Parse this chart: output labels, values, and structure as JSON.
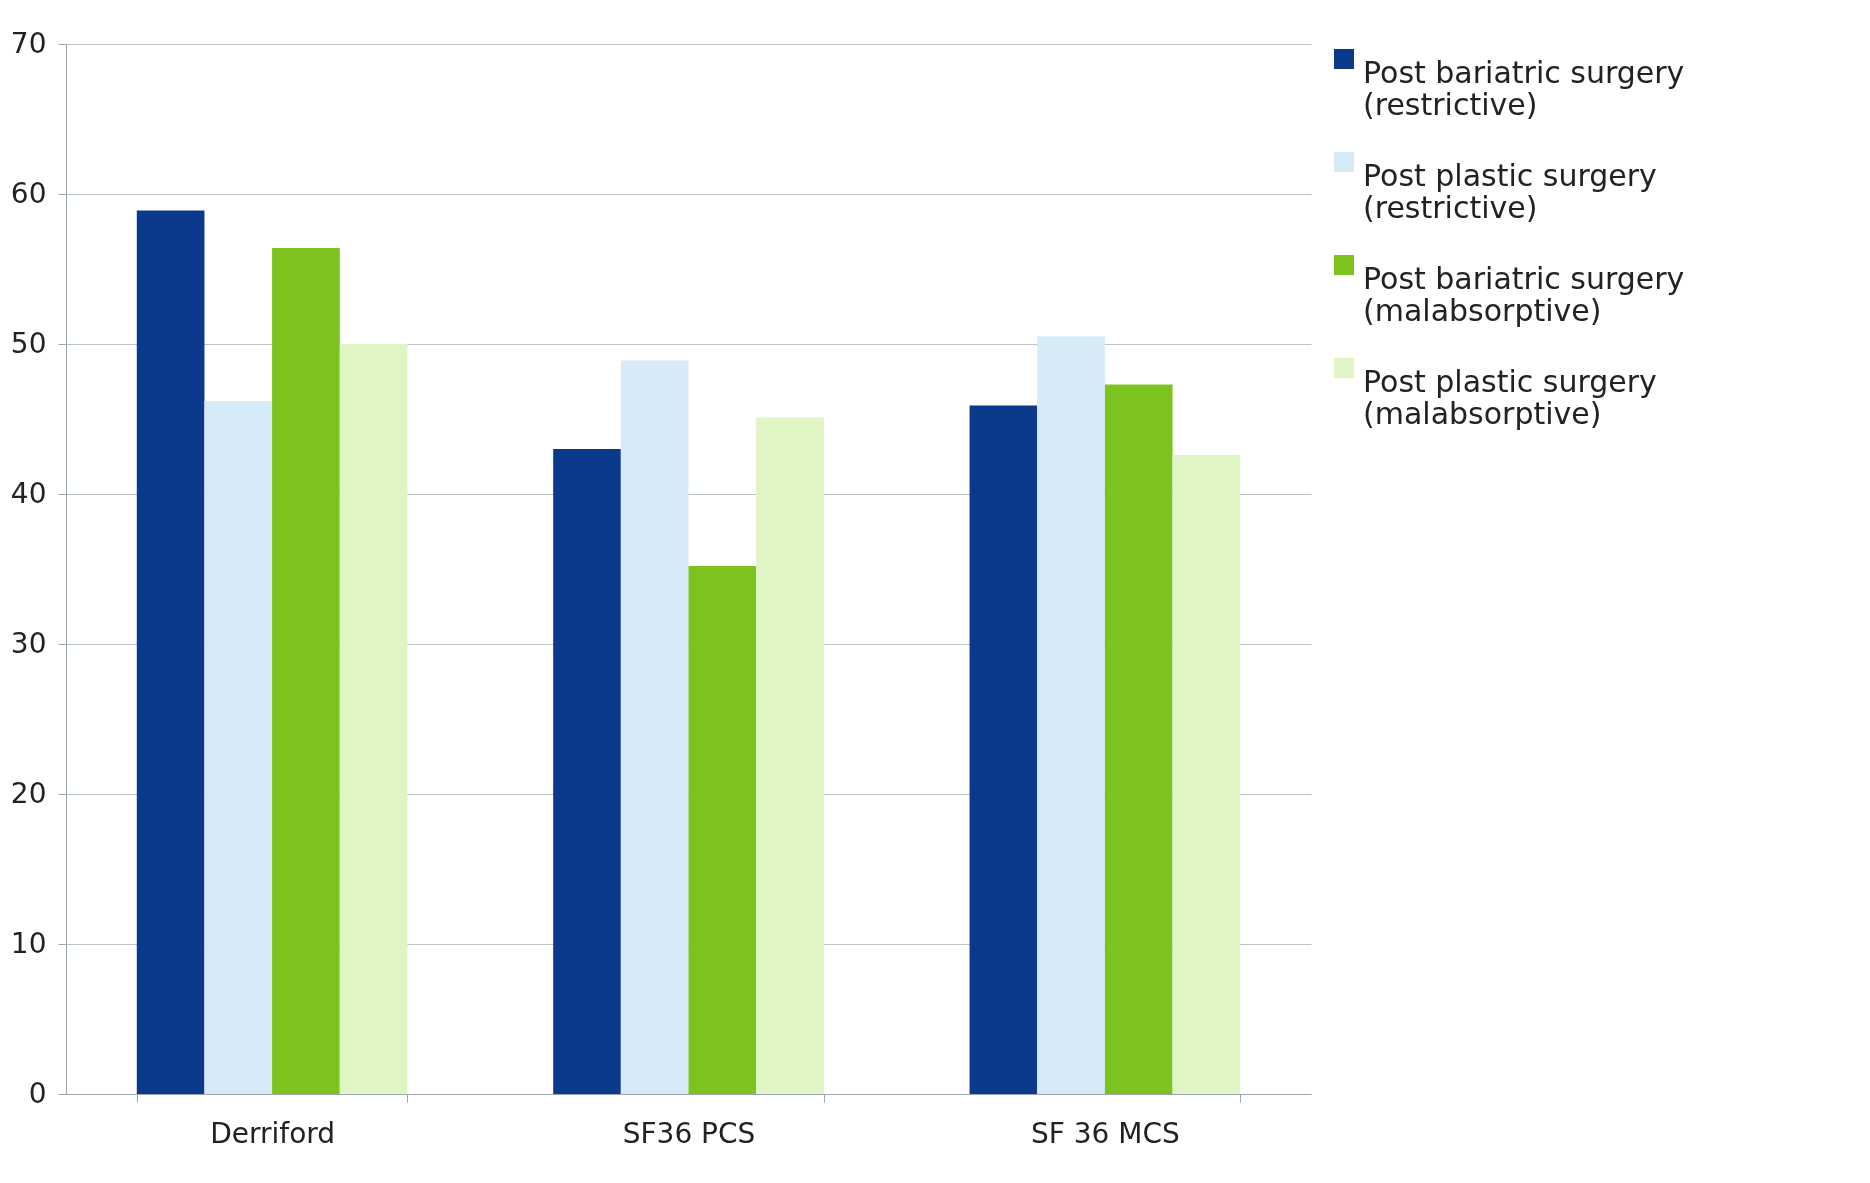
{
  "chart_data": {
    "type": "bar",
    "categories": [
      "Derriford",
      "SF36 PCS",
      "SF 36 MCS"
    ],
    "series": [
      {
        "name": "Post bariatric surgery (restrictive)",
        "color": "#0b3a8c",
        "values": [
          58.9,
          43.0,
          45.9
        ]
      },
      {
        "name": "Post plastic surgery (restrictive)",
        "color": "#d6eaf8",
        "values": [
          46.2,
          48.9,
          50.5
        ]
      },
      {
        "name": "Post bariatric surgery (malabsorptive)",
        "color": "#7dc31f",
        "values": [
          56.4,
          35.2,
          47.3
        ]
      },
      {
        "name": "Post plastic surgery (malabsorptive)",
        "color": "#e0f5c4",
        "values": [
          50.0,
          45.1,
          42.6
        ]
      }
    ],
    "ylim": [
      0,
      70
    ],
    "yticks": [
      0,
      10,
      20,
      30,
      40,
      50,
      60,
      70
    ],
    "grid": "y",
    "legend": "right"
  }
}
